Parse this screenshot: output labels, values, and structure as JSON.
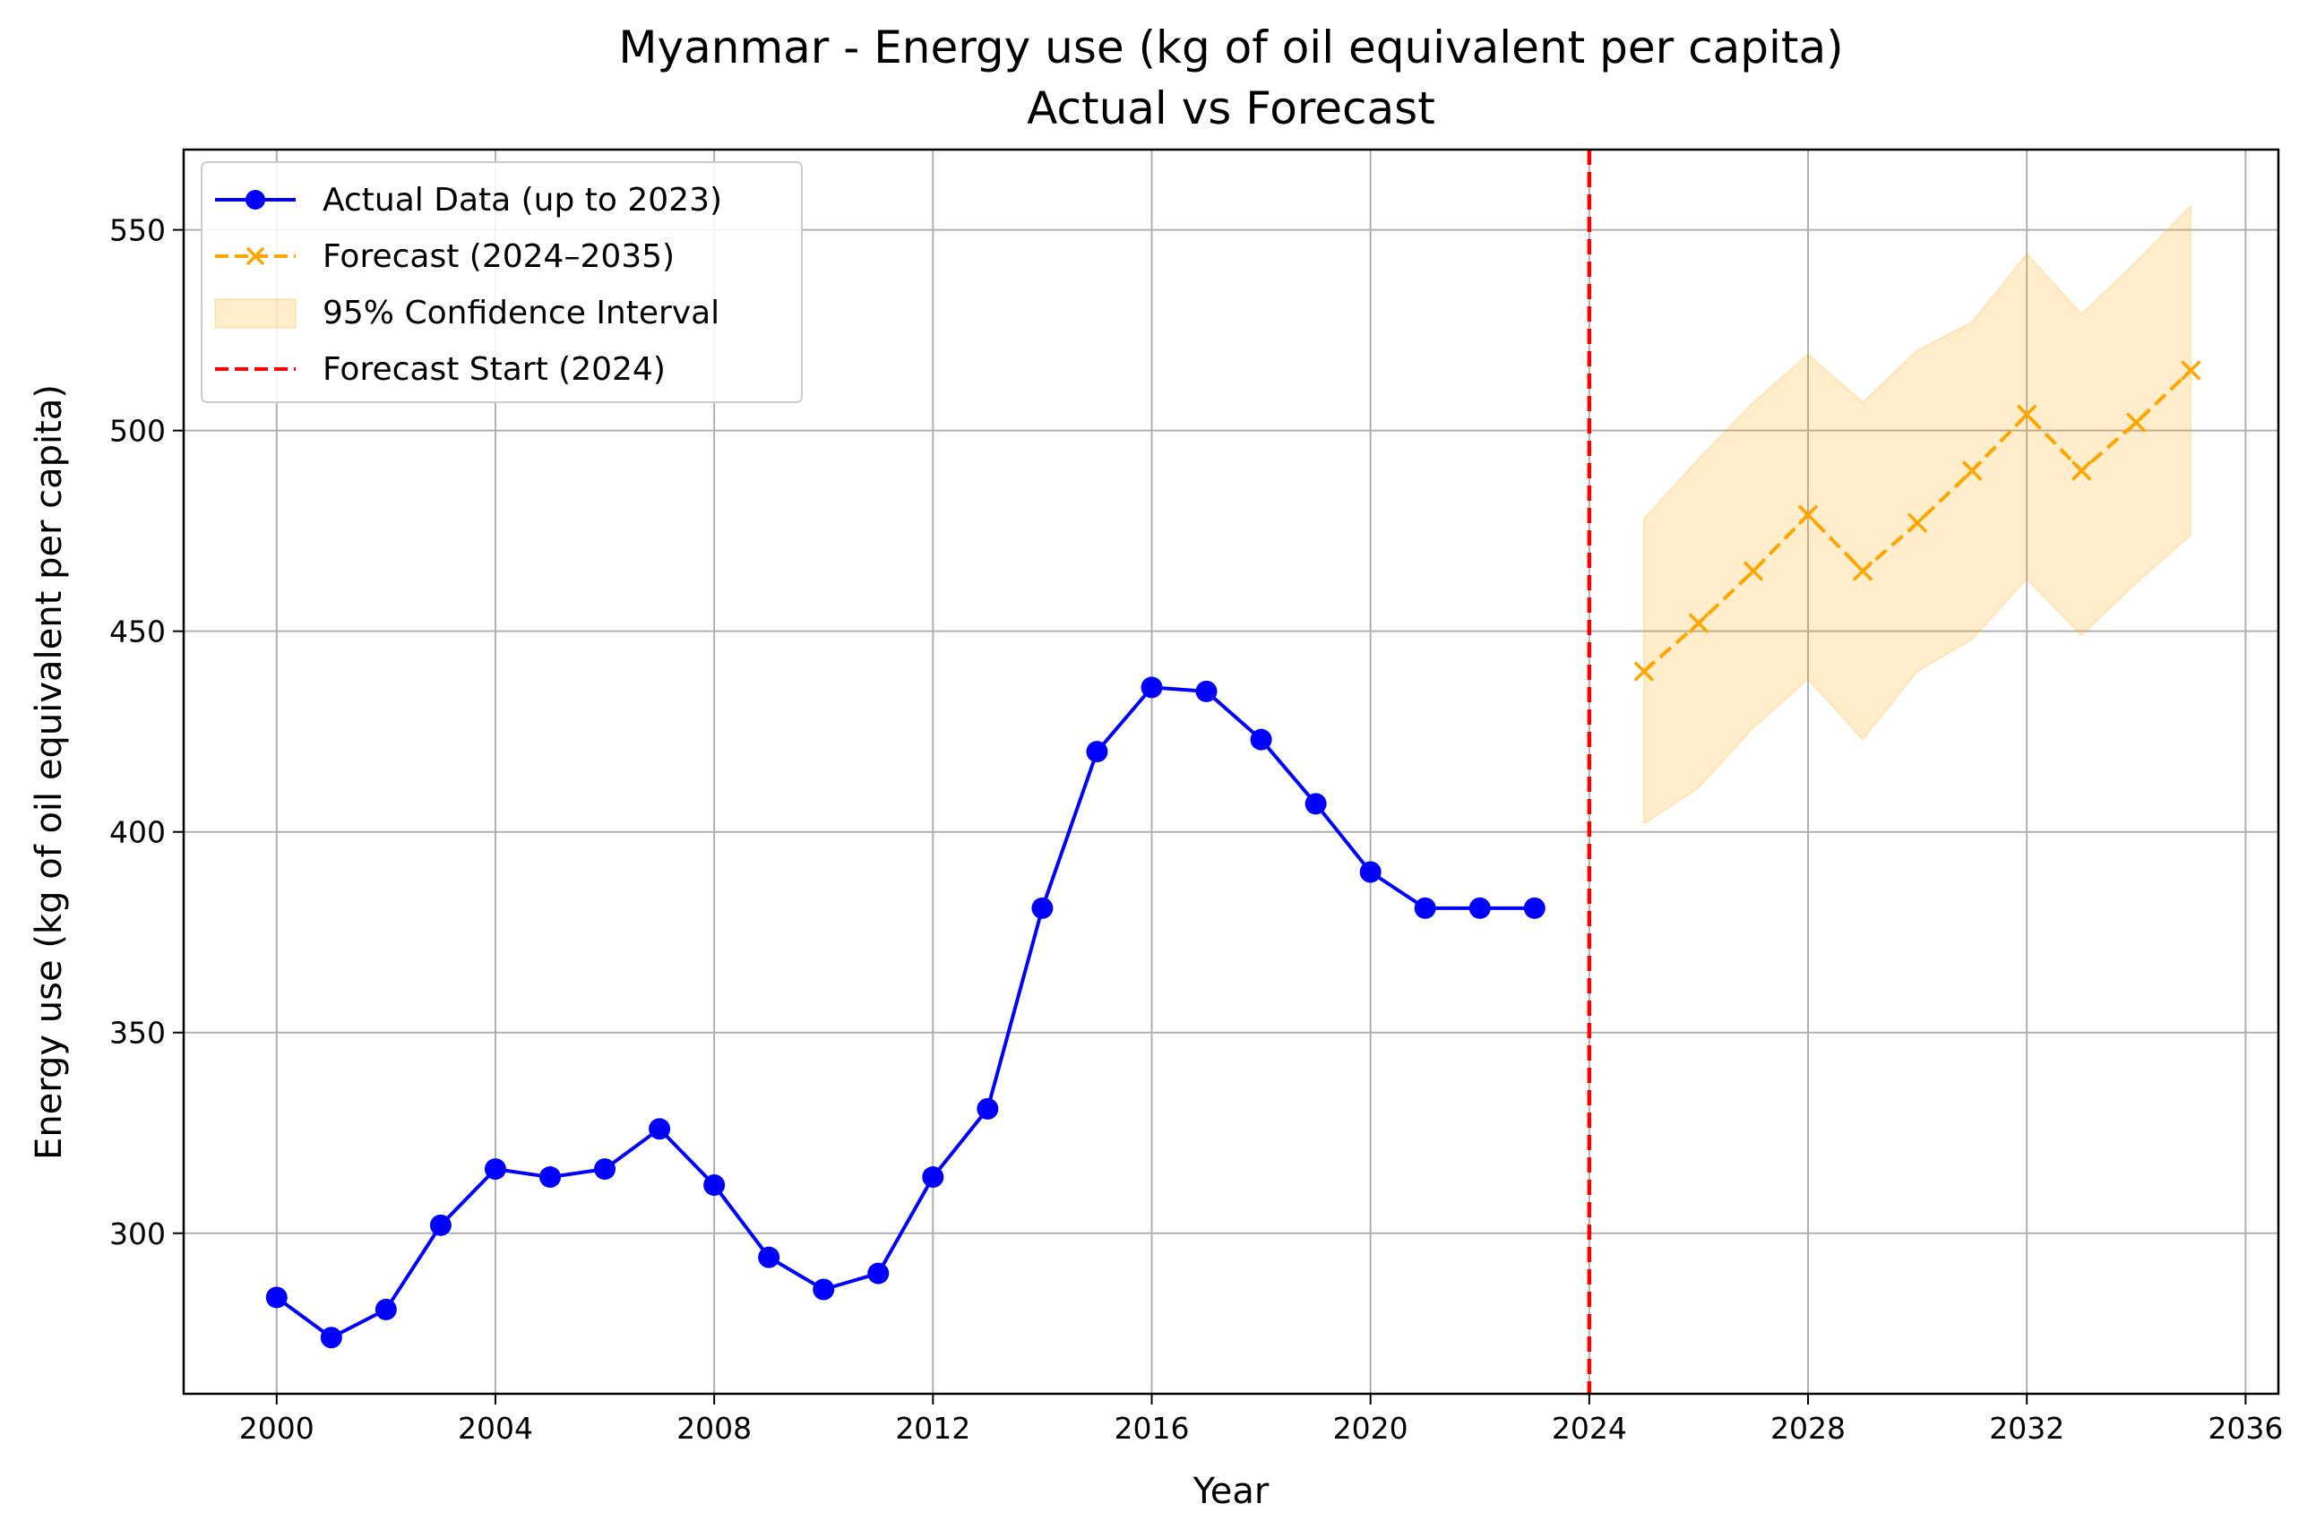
{
  "chart_data": {
    "type": "line",
    "title": "Myanmar - Energy use (kg of oil equivalent per capita)",
    "subtitle": "Actual vs Forecast",
    "xlabel": "Year",
    "ylabel": "Energy use (kg of oil equivalent per capita)",
    "xlim": [
      1998.3,
      2036.6
    ],
    "ylim": [
      260,
      570
    ],
    "xticks": [
      2000,
      2004,
      2008,
      2012,
      2016,
      2020,
      2024,
      2028,
      2032,
      2036
    ],
    "yticks": [
      300,
      350,
      400,
      450,
      500,
      550
    ],
    "grid": true,
    "legend_position": "top-left",
    "series": [
      {
        "name": "Actual Data (up to 2023)",
        "color": "#0000ff",
        "style": "solid",
        "marker": "circle",
        "x": [
          2000,
          2001,
          2002,
          2003,
          2004,
          2005,
          2006,
          2007,
          2008,
          2009,
          2010,
          2011,
          2012,
          2013,
          2014,
          2015,
          2016,
          2017,
          2018,
          2019,
          2020,
          2021,
          2022,
          2023
        ],
        "values": [
          284,
          274,
          281,
          302,
          316,
          314,
          316,
          326,
          312,
          294,
          286,
          290,
          314,
          331,
          381,
          420,
          436,
          435,
          423,
          407,
          390,
          381,
          381,
          381
        ]
      },
      {
        "name": "Forecast (2024–2035)",
        "color": "#ffa500",
        "style": "dashed",
        "marker": "x",
        "x": [
          2025,
          2026,
          2027,
          2028,
          2029,
          2030,
          2031,
          2032,
          2033,
          2034,
          2035
        ],
        "values": [
          440,
          452,
          465,
          479,
          465,
          477,
          490,
          504,
          490,
          502,
          515
        ]
      }
    ],
    "confidence_interval": {
      "name": "95% Confidence Interval",
      "color": "#ffa500",
      "x": [
        2025,
        2026,
        2027,
        2028,
        2029,
        2030,
        2031,
        2032,
        2033,
        2034,
        2035
      ],
      "lower": [
        402,
        411,
        426,
        438,
        423,
        440,
        448,
        463,
        449,
        462,
        474
      ],
      "upper": [
        478,
        493,
        507,
        519,
        507,
        520,
        527,
        544,
        529,
        542,
        556
      ]
    },
    "vline": {
      "name": "Forecast Start (2024)",
      "x": 2024,
      "color": "#ff0000",
      "style": "dashed"
    }
  }
}
